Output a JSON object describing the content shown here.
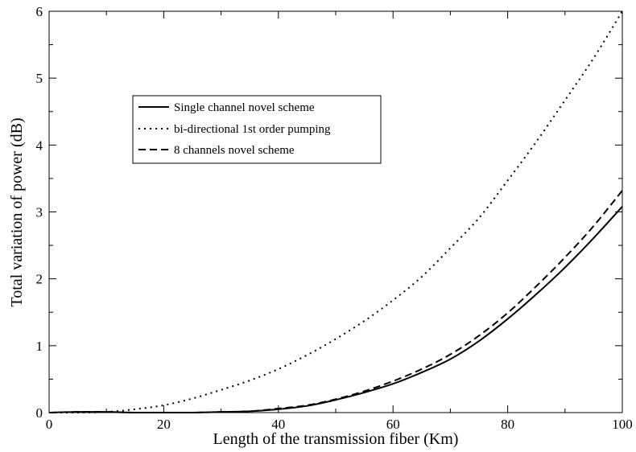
{
  "chart_data": {
    "type": "line",
    "title": "",
    "xlabel": "Length of the transmission fiber (Km)",
    "ylabel": "Total variation of power (dB)",
    "xlim": [
      0,
      100
    ],
    "ylim": [
      0,
      6
    ],
    "xticks": [
      0,
      20,
      40,
      60,
      80,
      100
    ],
    "yticks": [
      0,
      1,
      2,
      3,
      4,
      5,
      6
    ],
    "grid": false,
    "legend_position": "upper-left",
    "series": [
      {
        "name": "Single channel novel scheme",
        "style": "solid",
        "color": "#000000",
        "x": [
          0,
          5,
          10,
          15,
          20,
          25,
          30,
          35,
          40,
          45,
          50,
          55,
          60,
          65,
          70,
          75,
          80,
          85,
          90,
          95,
          100
        ],
        "y": [
          0.0,
          0.01,
          0.01,
          0.0,
          0.0,
          0.0,
          0.01,
          0.02,
          0.05,
          0.1,
          0.19,
          0.3,
          0.43,
          0.6,
          0.8,
          1.07,
          1.4,
          1.77,
          2.17,
          2.61,
          3.08
        ]
      },
      {
        "name": "bi-directional 1st order pumping",
        "style": "dotted",
        "color": "#000000",
        "x": [
          0,
          5,
          10,
          15,
          20,
          25,
          30,
          35,
          40,
          45,
          50,
          55,
          60,
          65,
          70,
          75,
          80,
          85,
          90,
          95,
          100
        ],
        "y": [
          0.0,
          0.0,
          0.01,
          0.05,
          0.11,
          0.21,
          0.34,
          0.48,
          0.65,
          0.86,
          1.1,
          1.37,
          1.68,
          2.03,
          2.46,
          2.91,
          3.47,
          4.05,
          4.67,
          5.3,
          6.0
        ]
      },
      {
        "name": "8 channels novel scheme",
        "style": "dashed",
        "color": "#000000",
        "x": [
          0,
          5,
          10,
          15,
          20,
          25,
          30,
          35,
          40,
          45,
          50,
          55,
          60,
          65,
          70,
          75,
          80,
          85,
          90,
          95,
          100
        ],
        "y": [
          0.0,
          0.01,
          0.01,
          0.0,
          0.0,
          0.0,
          0.01,
          0.02,
          0.06,
          0.11,
          0.2,
          0.32,
          0.47,
          0.65,
          0.87,
          1.15,
          1.49,
          1.89,
          2.32,
          2.79,
          3.32
        ]
      }
    ]
  }
}
